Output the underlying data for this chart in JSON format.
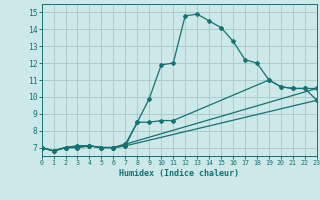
{
  "xlabel": "Humidex (Indice chaleur)",
  "bg_color": "#cce8e8",
  "grid_color": "#aacccc",
  "line_color": "#1a7070",
  "xlim": [
    0,
    23
  ],
  "ylim": [
    6.5,
    15.5
  ],
  "xticks": [
    0,
    1,
    2,
    3,
    4,
    5,
    6,
    7,
    8,
    9,
    10,
    11,
    12,
    13,
    14,
    15,
    16,
    17,
    18,
    19,
    20,
    21,
    22,
    23
  ],
  "yticks": [
    7,
    8,
    9,
    10,
    11,
    12,
    13,
    14,
    15
  ],
  "lines": [
    {
      "x": [
        0,
        1,
        2,
        3,
        4,
        5,
        6,
        7,
        8,
        9,
        10,
        11,
        12,
        13,
        14,
        15,
        16,
        17,
        18,
        19,
        20,
        21,
        22,
        23
      ],
      "y": [
        7.0,
        6.8,
        7.0,
        7.1,
        7.1,
        7.0,
        7.0,
        7.1,
        8.5,
        9.9,
        11.9,
        12.0,
        14.8,
        14.9,
        14.5,
        14.1,
        13.3,
        12.2,
        12.0,
        11.0,
        10.6,
        10.5,
        10.5,
        9.8
      ]
    },
    {
      "x": [
        0,
        1,
        2,
        3,
        4,
        5,
        6,
        7,
        8,
        9,
        10,
        11,
        19,
        20,
        21,
        22,
        23
      ],
      "y": [
        7.0,
        6.8,
        7.0,
        7.1,
        7.1,
        7.0,
        7.0,
        7.2,
        8.5,
        8.5,
        8.6,
        8.6,
        11.0,
        10.6,
        10.5,
        10.5,
        10.5
      ]
    },
    {
      "x": [
        0,
        1,
        2,
        3,
        4,
        5,
        6,
        7,
        23
      ],
      "y": [
        7.0,
        6.8,
        7.0,
        7.0,
        7.1,
        7.0,
        7.0,
        7.2,
        10.5
      ]
    },
    {
      "x": [
        0,
        1,
        2,
        3,
        4,
        5,
        6,
        7,
        23
      ],
      "y": [
        7.0,
        6.8,
        7.0,
        7.0,
        7.1,
        7.0,
        7.0,
        7.1,
        9.8
      ]
    }
  ]
}
